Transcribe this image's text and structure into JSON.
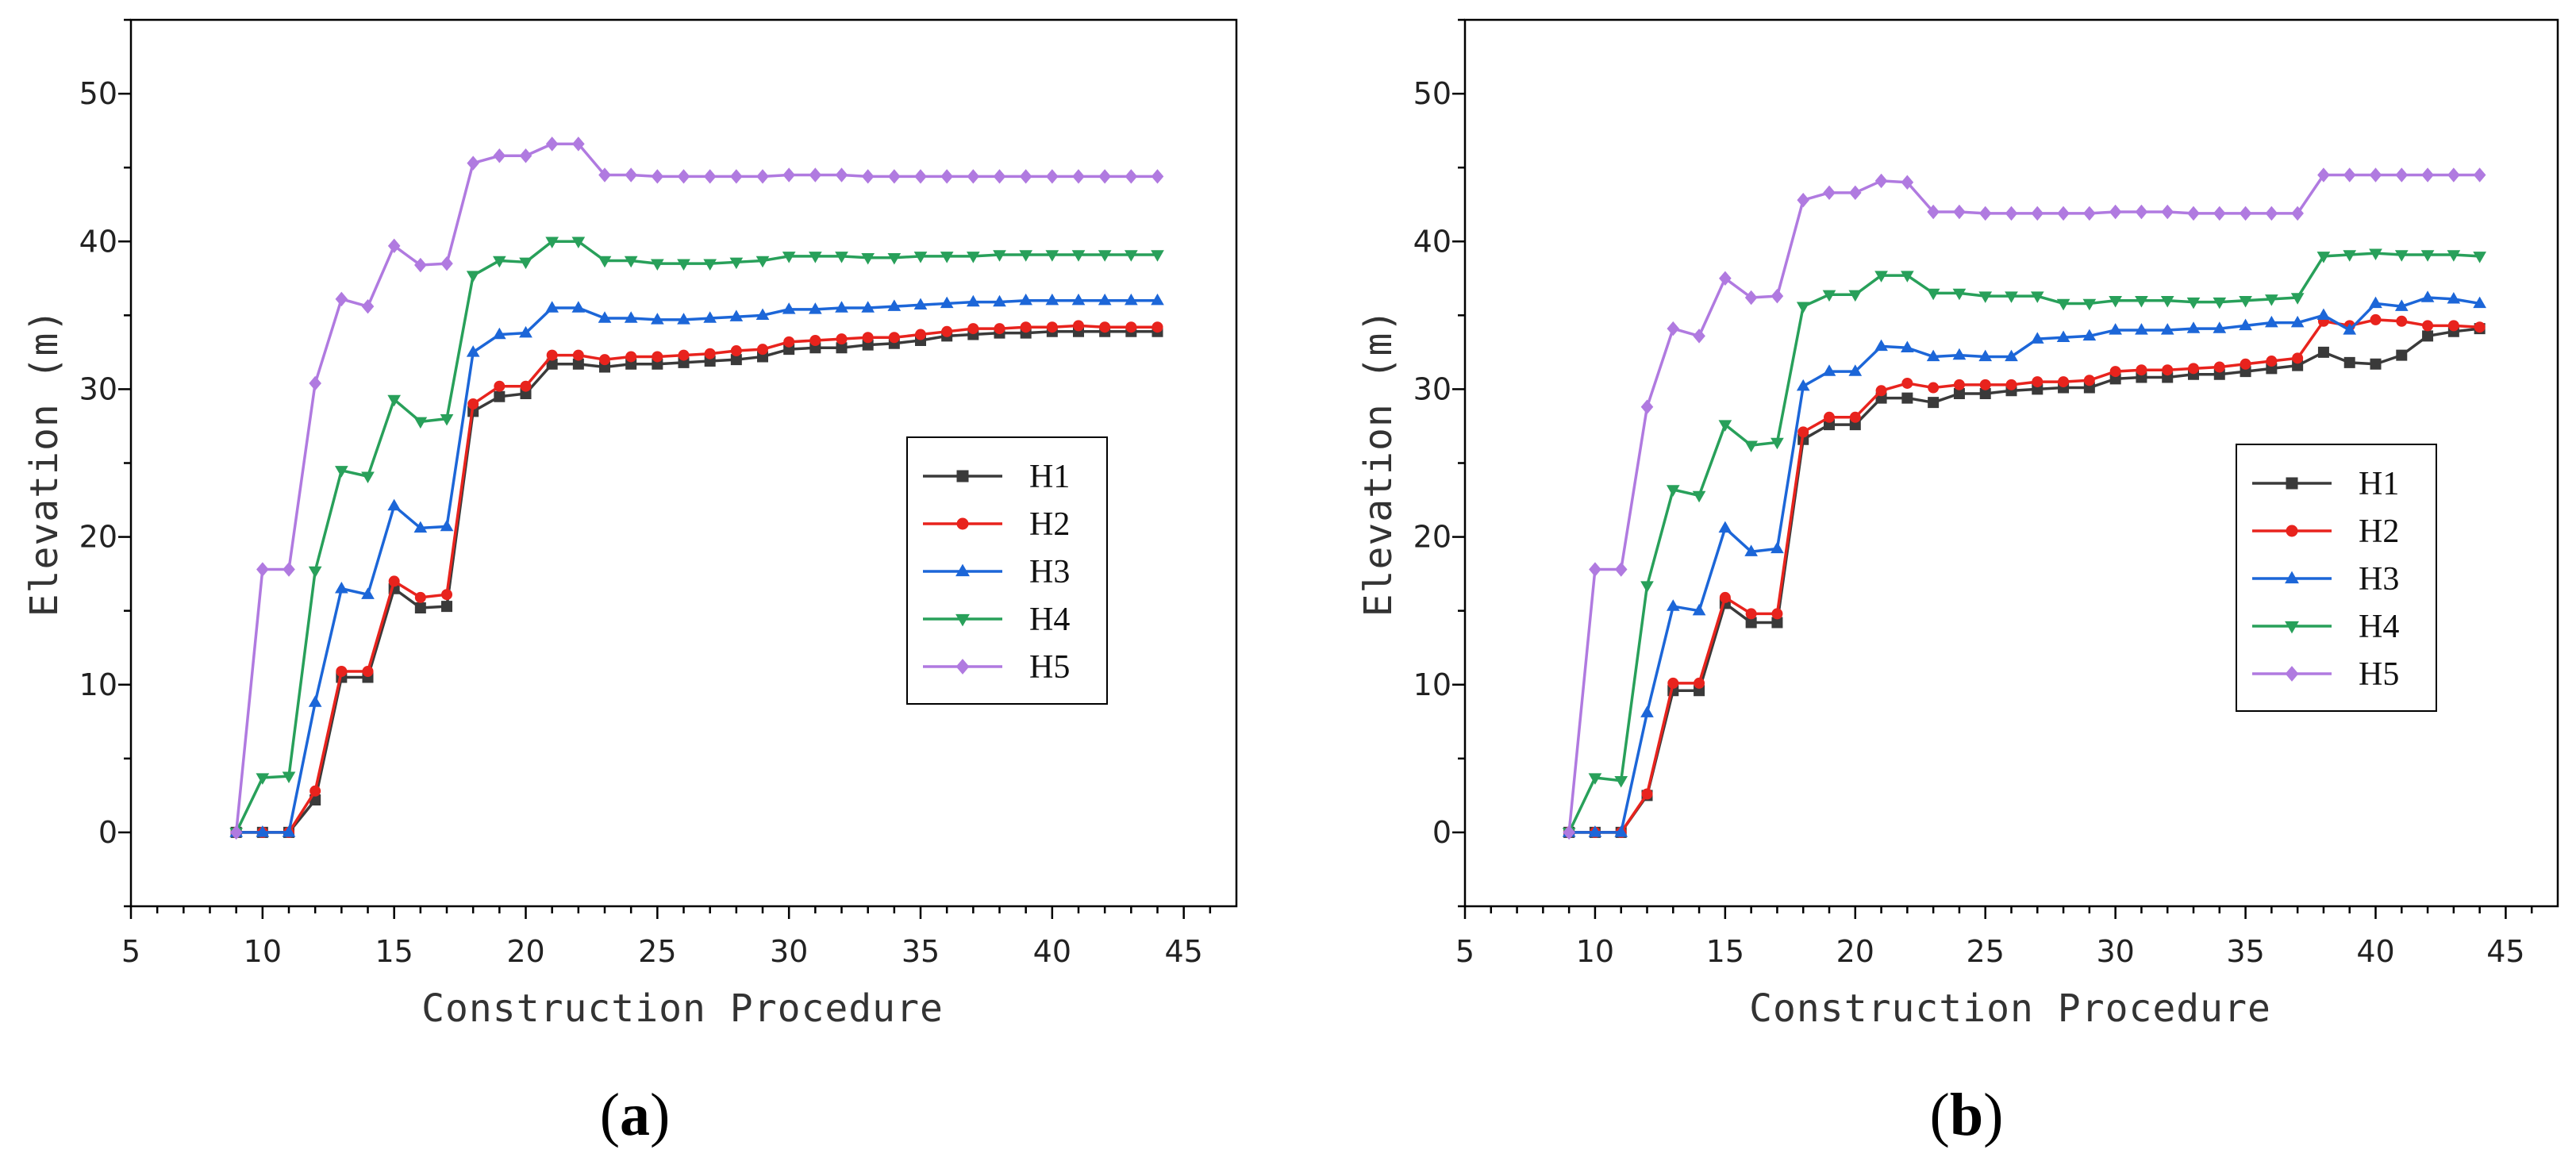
{
  "colors": {
    "H1": "#3a3a3a",
    "H2": "#e8231d",
    "H3": "#1c66d8",
    "H4": "#28a05a",
    "H5": "#b07ae0",
    "axis": "#000000"
  },
  "chart_data": [
    {
      "type": "line",
      "panel_label": {
        "open": "(",
        "letter": "a",
        "close": ")"
      },
      "xlabel": "Construction Procedure",
      "ylabel": "Elevation (m)",
      "xlim": [
        5,
        47
      ],
      "ylim": [
        -5,
        55
      ],
      "xticks": [
        5,
        10,
        15,
        20,
        25,
        30,
        35,
        40,
        45
      ],
      "yticks": [
        0,
        10,
        20,
        30,
        40,
        50
      ],
      "xtick_labels": [
        "5",
        "10",
        "15",
        "20",
        "25",
        "30",
        "35",
        "40",
        "45"
      ],
      "ytick_labels": [
        "0",
        "10",
        "20",
        "30",
        "40",
        "50"
      ],
      "legend_position": "center-right",
      "x": [
        9,
        10,
        11,
        12,
        13,
        14,
        15,
        16,
        17,
        18,
        19,
        20,
        21,
        22,
        23,
        24,
        25,
        26,
        27,
        28,
        29,
        30,
        31,
        32,
        33,
        34,
        35,
        36,
        37,
        38,
        39,
        40,
        41,
        42,
        43,
        44
      ],
      "series": [
        {
          "name": "H1",
          "marker": "square",
          "values": [
            0,
            0,
            0,
            2.2,
            10.5,
            10.5,
            16.5,
            15.2,
            15.3,
            28.5,
            29.5,
            29.7,
            31.7,
            31.7,
            31.5,
            31.7,
            31.7,
            31.8,
            31.9,
            32,
            32.2,
            32.7,
            32.8,
            32.8,
            33,
            33.1,
            33.3,
            33.6,
            33.7,
            33.8,
            33.8,
            33.9,
            33.9,
            33.9,
            33.9,
            33.9
          ]
        },
        {
          "name": "H2",
          "marker": "circle",
          "values": [
            0,
            0,
            0,
            2.8,
            10.9,
            10.9,
            17,
            15.9,
            16.1,
            29,
            30.2,
            30.2,
            32.3,
            32.3,
            32,
            32.2,
            32.2,
            32.3,
            32.4,
            32.6,
            32.7,
            33.2,
            33.3,
            33.4,
            33.5,
            33.5,
            33.7,
            33.9,
            34.1,
            34.1,
            34.2,
            34.2,
            34.3,
            34.2,
            34.2,
            34.2
          ]
        },
        {
          "name": "H3",
          "marker": "triangle-up",
          "values": [
            0,
            0,
            0,
            8.8,
            16.5,
            16.1,
            22.1,
            20.6,
            20.7,
            32.5,
            33.7,
            33.8,
            35.5,
            35.5,
            34.8,
            34.8,
            34.7,
            34.7,
            34.8,
            34.9,
            35,
            35.4,
            35.4,
            35.5,
            35.5,
            35.6,
            35.7,
            35.8,
            35.9,
            35.9,
            36,
            36,
            36,
            36,
            36,
            36
          ]
        },
        {
          "name": "H4",
          "marker": "triangle-down",
          "values": [
            0,
            3.7,
            3.8,
            17.7,
            24.5,
            24.1,
            29.3,
            27.8,
            28,
            37.7,
            38.7,
            38.6,
            40,
            40,
            38.7,
            38.7,
            38.5,
            38.5,
            38.5,
            38.6,
            38.7,
            39,
            39,
            39,
            38.9,
            38.9,
            39,
            39,
            39,
            39.1,
            39.1,
            39.1,
            39.1,
            39.1,
            39.1,
            39.1
          ]
        },
        {
          "name": "H5",
          "marker": "diamond",
          "values": [
            0,
            17.8,
            17.8,
            30.4,
            36.1,
            35.6,
            39.7,
            38.4,
            38.5,
            45.3,
            45.8,
            45.8,
            46.6,
            46.6,
            44.5,
            44.5,
            44.4,
            44.4,
            44.4,
            44.4,
            44.4,
            44.5,
            44.5,
            44.5,
            44.4,
            44.4,
            44.4,
            44.4,
            44.4,
            44.4,
            44.4,
            44.4,
            44.4,
            44.4,
            44.4,
            44.4
          ]
        }
      ]
    },
    {
      "type": "line",
      "panel_label": {
        "open": "(",
        "letter": "b",
        "close": ")"
      },
      "xlabel": "Construction Procedure",
      "ylabel": "Elevation (m)",
      "xlim": [
        5,
        47
      ],
      "ylim": [
        -5,
        55
      ],
      "xticks": [
        5,
        10,
        15,
        20,
        25,
        30,
        35,
        40,
        45
      ],
      "yticks": [
        0,
        10,
        20,
        30,
        40,
        50
      ],
      "xtick_labels": [
        "5",
        "10",
        "15",
        "20",
        "25",
        "30",
        "35",
        "40",
        "45"
      ],
      "ytick_labels": [
        "0",
        "10",
        "20",
        "30",
        "40",
        "50"
      ],
      "legend_position": "center-right",
      "x": [
        9,
        10,
        11,
        12,
        13,
        14,
        15,
        16,
        17,
        18,
        19,
        20,
        21,
        22,
        23,
        24,
        25,
        26,
        27,
        28,
        29,
        30,
        31,
        32,
        33,
        34,
        35,
        36,
        37,
        38,
        39,
        40,
        41,
        42,
        43,
        44
      ],
      "series": [
        {
          "name": "H1",
          "marker": "square",
          "values": [
            0,
            0,
            0,
            2.5,
            9.6,
            9.6,
            15.5,
            14.2,
            14.2,
            26.6,
            27.6,
            27.6,
            29.4,
            29.4,
            29.1,
            29.7,
            29.7,
            29.9,
            30,
            30.1,
            30.1,
            30.7,
            30.8,
            30.8,
            31,
            31,
            31.2,
            31.4,
            31.6,
            32.5,
            31.8,
            31.7,
            32.3,
            33.6,
            33.9,
            34.1
          ]
        },
        {
          "name": "H2",
          "marker": "circle",
          "values": [
            0,
            0,
            0,
            2.6,
            10.1,
            10.1,
            15.9,
            14.8,
            14.8,
            27.1,
            28.1,
            28.1,
            29.9,
            30.4,
            30.1,
            30.3,
            30.3,
            30.3,
            30.5,
            30.5,
            30.6,
            31.2,
            31.3,
            31.3,
            31.4,
            31.5,
            31.7,
            31.9,
            32.1,
            34.6,
            34.3,
            34.7,
            34.6,
            34.3,
            34.3,
            34.2
          ]
        },
        {
          "name": "H3",
          "marker": "triangle-up",
          "values": [
            0,
            0,
            0,
            8.1,
            15.3,
            15,
            20.6,
            19,
            19.2,
            30.2,
            31.2,
            31.2,
            32.9,
            32.8,
            32.2,
            32.3,
            32.2,
            32.2,
            33.4,
            33.5,
            33.6,
            34,
            34,
            34,
            34.1,
            34.1,
            34.3,
            34.5,
            34.5,
            35,
            34,
            35.8,
            35.6,
            36.2,
            36.1,
            35.8
          ]
        },
        {
          "name": "H4",
          "marker": "triangle-down",
          "values": [
            0,
            3.7,
            3.5,
            16.7,
            23.2,
            22.8,
            27.6,
            26.2,
            26.4,
            35.6,
            36.4,
            36.4,
            37.7,
            37.7,
            36.5,
            36.5,
            36.3,
            36.3,
            36.3,
            35.8,
            35.8,
            36,
            36,
            36,
            35.9,
            35.9,
            36,
            36.1,
            36.2,
            39,
            39.1,
            39.2,
            39.1,
            39.1,
            39.1,
            39
          ]
        },
        {
          "name": "H5",
          "marker": "diamond",
          "values": [
            0,
            17.8,
            17.8,
            28.8,
            34.1,
            33.6,
            37.5,
            36.2,
            36.3,
            42.8,
            43.3,
            43.3,
            44.1,
            44,
            42,
            42,
            41.9,
            41.9,
            41.9,
            41.9,
            41.9,
            42,
            42,
            42,
            41.9,
            41.9,
            41.9,
            41.9,
            41.9,
            44.5,
            44.5,
            44.5,
            44.5,
            44.5,
            44.5,
            44.5
          ]
        }
      ]
    }
  ]
}
